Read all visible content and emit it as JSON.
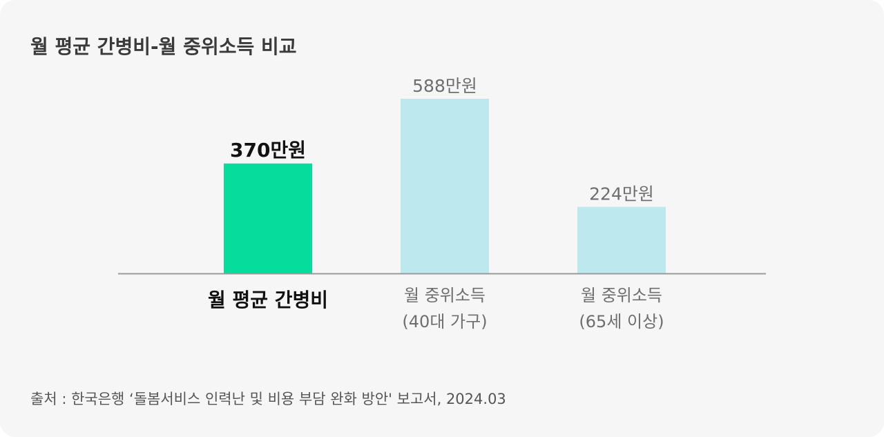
{
  "title": "월 평균 간병비-월 중위소득 비교",
  "source": "출처 : 한국은행 ‘돌봄서비스 인력난 및 비용 부담 완화 방안' 보고서, 2024.03",
  "colors": {
    "background": "#f6f6f6",
    "highlight": "#06dc9c",
    "muted": "#bde8ee",
    "axis": "#9a9a9a",
    "highlight_text": "#111111",
    "muted_text": "#6e6e6e"
  },
  "chart_data": {
    "type": "bar",
    "title": "월 평균 간병비-월 중위소득 비교",
    "categories": [
      {
        "line1": "월 평균 간병비",
        "line2": ""
      },
      {
        "line1": "월 중위소득",
        "line2": "(40대 가구)"
      },
      {
        "line1": "월 중위소득",
        "line2": "(65세 이상)"
      }
    ],
    "values": [
      370,
      588,
      224
    ],
    "value_labels": [
      "370만원",
      "588만원",
      "224만원"
    ],
    "highlight": [
      true,
      false,
      false
    ],
    "unit": "만원",
    "ylim": [
      0,
      600
    ],
    "grid": false,
    "legend": "none"
  }
}
